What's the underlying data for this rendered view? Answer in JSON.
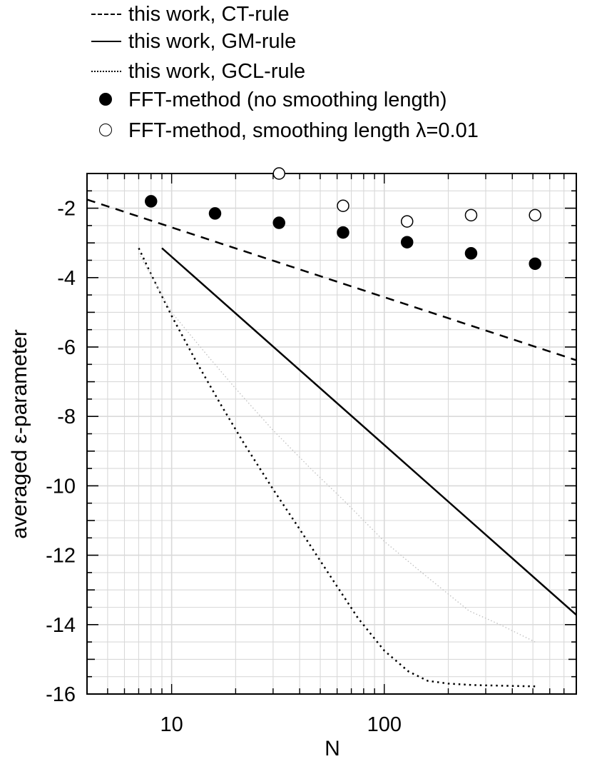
{
  "chart_data": {
    "type": "line",
    "x_scale": "log",
    "xlabel": "N",
    "ylabel": "averaged ε-parameter",
    "xlim": [
      4,
      800
    ],
    "ylim": [
      -16,
      -1
    ],
    "x_ticks": [
      10,
      100
    ],
    "x_tick_labels": [
      "10",
      "100"
    ],
    "y_ticks": [
      -16,
      -14,
      -12,
      -10,
      -8,
      -6,
      -4,
      -2
    ],
    "y_tick_labels": [
      "-16",
      "-14",
      "-12",
      "-10",
      "-8",
      "-6",
      "-4",
      "-2"
    ],
    "grid": true,
    "legend_position": "top",
    "legend": [
      {
        "label": "this work, CT-rule",
        "style": "dashed"
      },
      {
        "label": "this work, GM-rule",
        "style": "solid"
      },
      {
        "label": "this work, GCL-rule",
        "style": "dotted"
      },
      {
        "label": "FFT-method (no smoothing length)",
        "style": "filled-circle"
      },
      {
        "label": "FFT-method, smoothing length λ=0.01",
        "style": "open-circle"
      }
    ],
    "series": [
      {
        "name": "this work, CT-rule",
        "style": "dashed",
        "x": [
          4,
          800
        ],
        "y": [
          -1.75,
          -6.38
        ]
      },
      {
        "name": "this work, GM-rule",
        "style": "solid",
        "x": [
          9,
          800
        ],
        "y": [
          -3.15,
          -13.72
        ]
      },
      {
        "name": "this work, GCL-rule",
        "style": "dotted",
        "x": [
          7,
          8,
          10,
          13,
          17,
          22,
          30,
          40,
          55,
          75,
          100,
          130,
          160,
          200,
          260,
          350,
          512
        ],
        "y": [
          -3.15,
          -3.9,
          -5.1,
          -6.4,
          -7.65,
          -8.8,
          -10.1,
          -11.25,
          -12.55,
          -13.8,
          -14.75,
          -15.35,
          -15.62,
          -15.7,
          -15.74,
          -15.76,
          -15.78
        ]
      },
      {
        "name": "faint reference curve",
        "style": "faint-dotted",
        "x": [
          7,
          10,
          15,
          20,
          30,
          45,
          64,
          100,
          150,
          250,
          350,
          512
        ],
        "y": [
          -3.3,
          -5.0,
          -6.3,
          -7.2,
          -8.4,
          -9.5,
          -10.4,
          -11.6,
          -12.5,
          -13.6,
          -14.0,
          -14.5
        ]
      },
      {
        "name": "FFT-method (no smoothing length)",
        "style": "filled-circle",
        "x": [
          8,
          16,
          32,
          64,
          128,
          256,
          512
        ],
        "y": [
          -1.8,
          -2.15,
          -2.42,
          -2.7,
          -2.98,
          -3.3,
          -3.6
        ]
      },
      {
        "name": "FFT-method, smoothing length λ=0.01",
        "style": "open-circle",
        "x": [
          32,
          64,
          128,
          256,
          512
        ],
        "y": [
          -1.0,
          -1.93,
          -2.38,
          -2.2,
          -2.2
        ]
      }
    ]
  }
}
